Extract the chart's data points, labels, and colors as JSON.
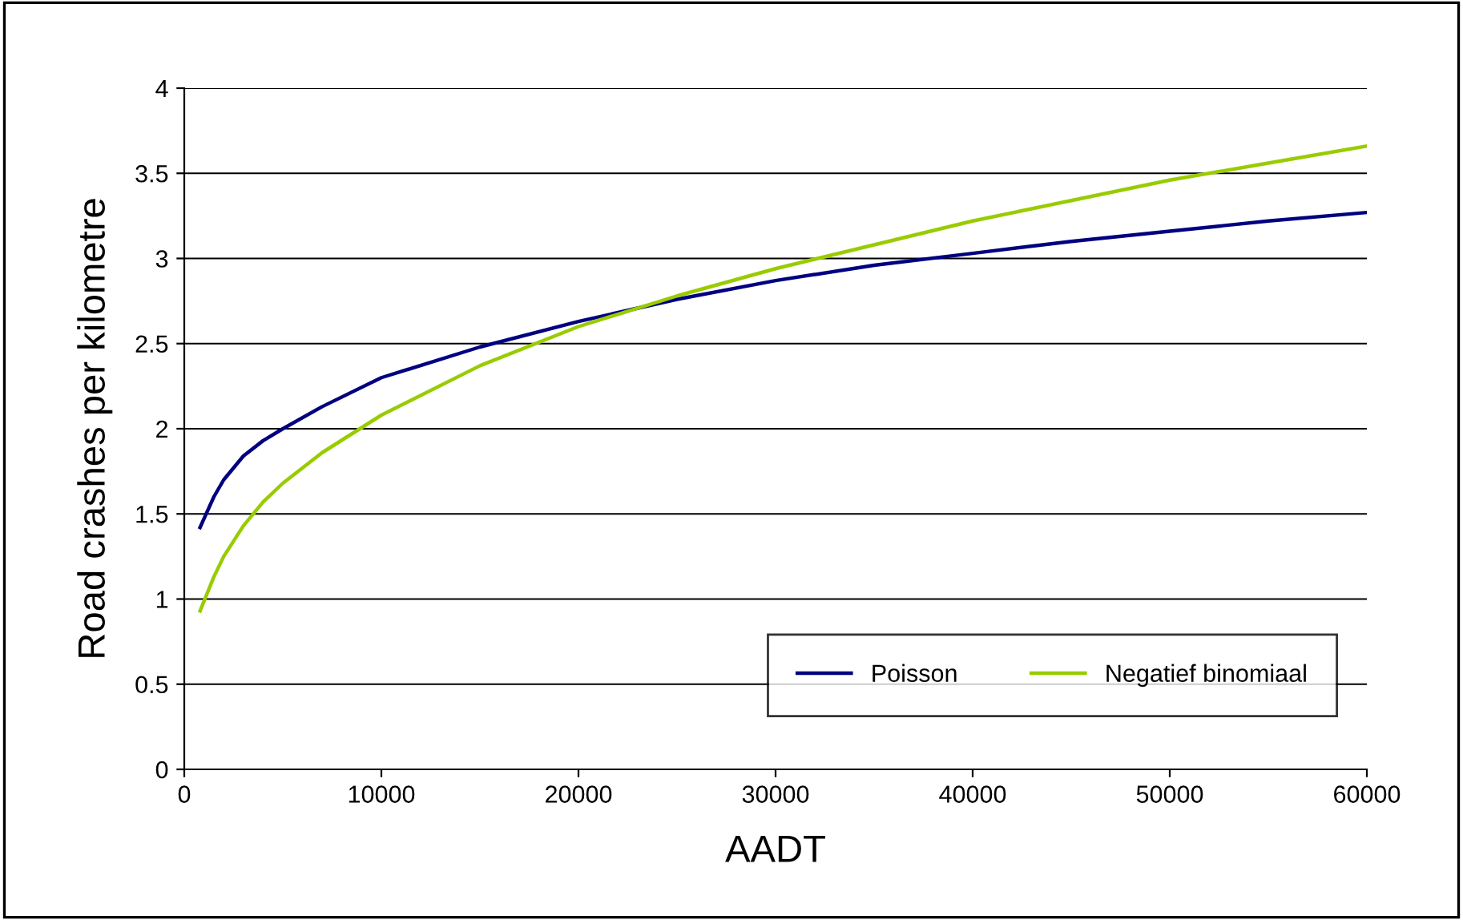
{
  "chart_data": {
    "type": "line",
    "xlabel": "AADT",
    "ylabel": "Road crashes per kilometre",
    "xlim": [
      0,
      60000
    ],
    "xticks": [
      0,
      10000,
      20000,
      30000,
      40000,
      50000,
      60000
    ],
    "ylim": [
      0,
      4
    ],
    "yticks": [
      0,
      0.5,
      1,
      1.5,
      2,
      2.5,
      3,
      3.5,
      4
    ],
    "grid": "y",
    "legend": "bottom right",
    "marker": "none",
    "line_style": "solid",
    "series": [
      {
        "name": "Poisson",
        "color": "#000080",
        "x": [
          800,
          1500,
          2000,
          3000,
          4000,
          5000,
          7000,
          10000,
          15000,
          20000,
          25000,
          30000,
          35000,
          40000,
          45000,
          50000,
          55000,
          60000
        ],
        "values": [
          1.42,
          1.6,
          1.7,
          1.84,
          1.93,
          2.0,
          2.13,
          2.3,
          2.48,
          2.63,
          2.76,
          2.87,
          2.96,
          3.03,
          3.1,
          3.16,
          3.22,
          3.27
        ]
      },
      {
        "name": "Negatief binomiaal",
        "color": "#99cc00",
        "x": [
          800,
          1500,
          2000,
          3000,
          4000,
          5000,
          7000,
          10000,
          15000,
          20000,
          25000,
          30000,
          35000,
          40000,
          45000,
          50000,
          55000,
          60000
        ],
        "values": [
          0.93,
          1.13,
          1.25,
          1.43,
          1.57,
          1.68,
          1.86,
          2.08,
          2.37,
          2.6,
          2.78,
          2.94,
          3.08,
          3.22,
          3.34,
          3.46,
          3.56,
          3.66
        ]
      }
    ]
  }
}
